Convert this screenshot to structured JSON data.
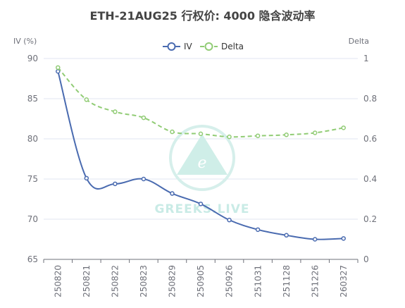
{
  "chart_data": {
    "type": "line",
    "title": "ETH-21AUG25 行权价: 4000 隐含波动率",
    "categories": [
      "250820",
      "250821",
      "250822",
      "250823",
      "250829",
      "250905",
      "250926",
      "251031",
      "251128",
      "251226",
      "260327"
    ],
    "y_left": {
      "label": "IV (%)",
      "range": [
        65,
        90
      ],
      "ticks": [
        65,
        70,
        75,
        80,
        85,
        90
      ]
    },
    "y_right": {
      "label": "Delta",
      "range": [
        0,
        1
      ],
      "ticks": [
        "0",
        "0.2",
        "0.4",
        "0.6",
        "0.8",
        "1"
      ]
    },
    "series": [
      {
        "name": "IV",
        "axis": "left",
        "color": "#4a6bb0",
        "style": "solid",
        "values": [
          88.4,
          75.1,
          74.4,
          75.0,
          73.2,
          71.9,
          69.9,
          68.7,
          68.0,
          67.5,
          67.6
        ]
      },
      {
        "name": "Delta",
        "axis": "right",
        "color": "#91cc75",
        "style": "dashed",
        "values": [
          0.955,
          0.795,
          0.735,
          0.705,
          0.635,
          0.625,
          0.61,
          0.615,
          0.62,
          0.63,
          0.655
        ]
      }
    ],
    "legend_position": "top-center",
    "grid": true
  },
  "watermark": {
    "text": "GREEKS.LIVE",
    "color": "#c9ebe6",
    "logo": "greeks-live-logo"
  }
}
